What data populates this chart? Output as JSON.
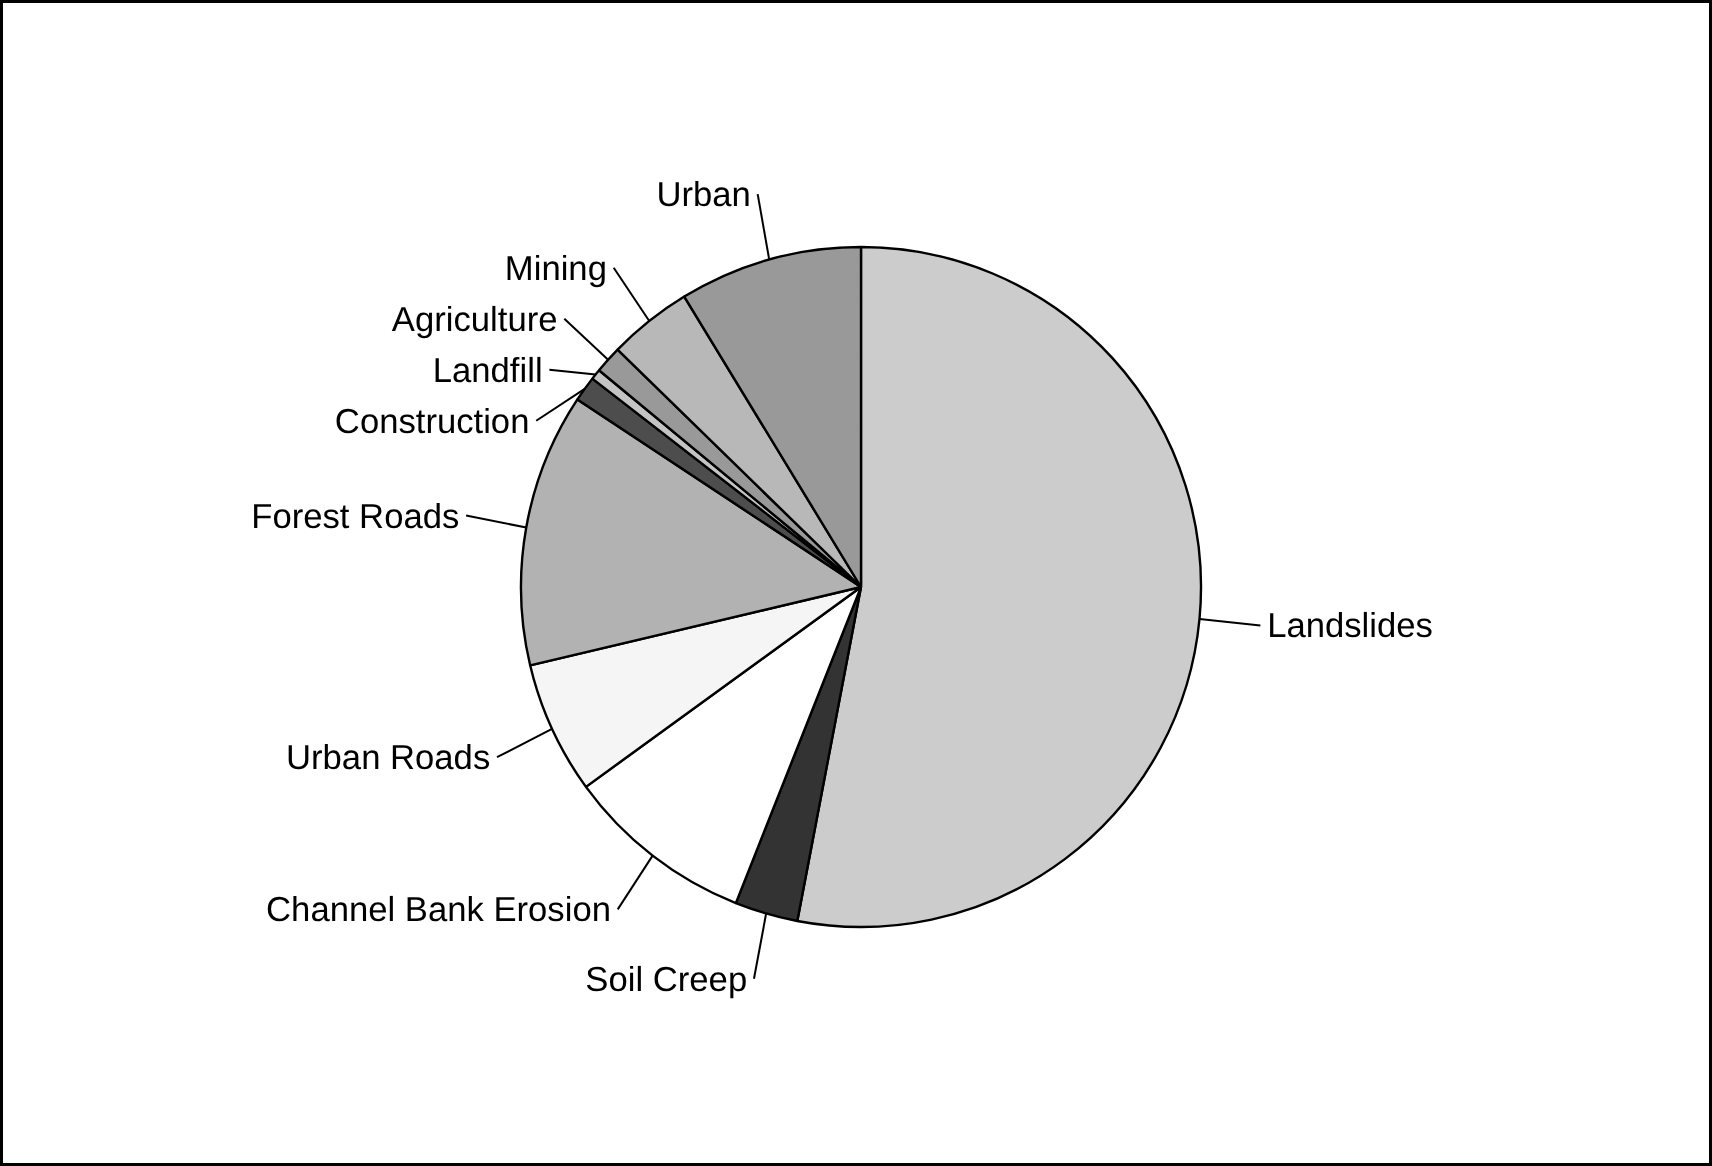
{
  "chart_data": {
    "type": "pie",
    "categories": [
      "Landslides",
      "Soil Creep",
      "Channel Bank Erosion",
      "Urban Roads",
      "Forest Roads",
      "Construction",
      "Landfill",
      "Agriculture",
      "Mining",
      "Urban"
    ],
    "values": [
      53.0,
      3.0,
      9.0,
      6.3,
      13.0,
      1.2,
      0.5,
      1.3,
      4.0,
      8.7
    ],
    "colors": [
      "#cccccc",
      "#333333",
      "#ffffff",
      "#f5f5f5",
      "#b2b2b2",
      "#4d4d4d",
      "#c4c4c4",
      "#999999",
      "#b8b8b8",
      "#999999"
    ]
  }
}
